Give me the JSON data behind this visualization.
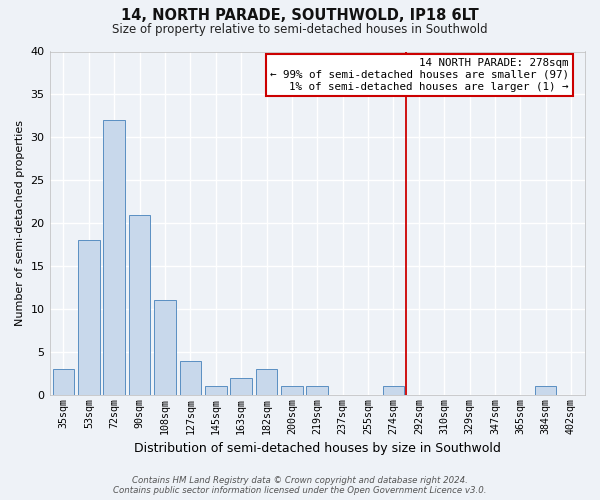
{
  "title": "14, NORTH PARADE, SOUTHWOLD, IP18 6LT",
  "subtitle": "Size of property relative to semi-detached houses in Southwold",
  "xlabel": "Distribution of semi-detached houses by size in Southwold",
  "ylabel": "Number of semi-detached properties",
  "bar_color": "#c8d8eb",
  "bar_edge_color": "#5a8fc2",
  "background_color": "#eef2f7",
  "grid_color": "#ffffff",
  "categories": [
    "35sqm",
    "53sqm",
    "72sqm",
    "90sqm",
    "108sqm",
    "127sqm",
    "145sqm",
    "163sqm",
    "182sqm",
    "200sqm",
    "219sqm",
    "237sqm",
    "255sqm",
    "274sqm",
    "292sqm",
    "310sqm",
    "329sqm",
    "347sqm",
    "365sqm",
    "384sqm",
    "402sqm"
  ],
  "values": [
    3,
    18,
    32,
    21,
    11,
    4,
    1,
    2,
    3,
    1,
    1,
    0,
    0,
    1,
    0,
    0,
    0,
    0,
    0,
    1,
    0
  ],
  "vline_x": 13.5,
  "vline_color": "#cc0000",
  "ylim": [
    0,
    40
  ],
  "yticks": [
    0,
    5,
    10,
    15,
    20,
    25,
    30,
    35,
    40
  ],
  "annotation_title": "14 NORTH PARADE: 278sqm",
  "annotation_line1": "← 99% of semi-detached houses are smaller (97)",
  "annotation_line2": "1% of semi-detached houses are larger (1) →",
  "annotation_box_color": "#ffffff",
  "annotation_box_edge_color": "#cc0000",
  "footer1": "Contains HM Land Registry data © Crown copyright and database right 2024.",
  "footer2": "Contains public sector information licensed under the Open Government Licence v3.0."
}
